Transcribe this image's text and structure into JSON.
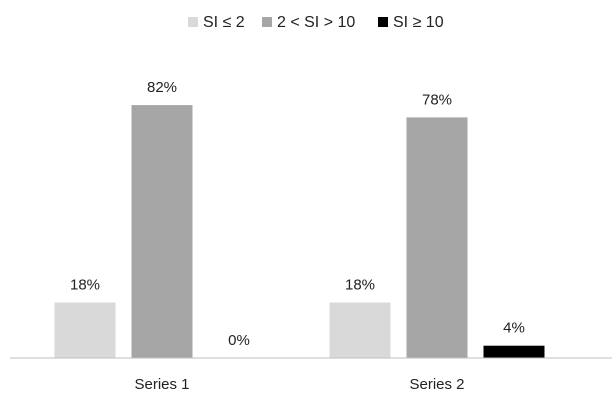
{
  "chart_data": {
    "type": "bar",
    "categories": [
      "Series 1",
      "Series 2"
    ],
    "series": [
      {
        "name": "SI ≤ 2",
        "values": [
          18,
          18
        ],
        "color": "#d9d9d9"
      },
      {
        "name": "2 < SI > 10",
        "values": [
          82,
          78
        ],
        "color": "#a6a6a6"
      },
      {
        "name": "SI ≥ 10",
        "values": [
          0,
          4
        ],
        "color": "#000000"
      }
    ],
    "value_suffix": "%",
    "ylim": [
      0,
      100
    ],
    "grid": false,
    "legend_position": "top-center",
    "title": "",
    "xlabel": "",
    "ylabel": ""
  }
}
